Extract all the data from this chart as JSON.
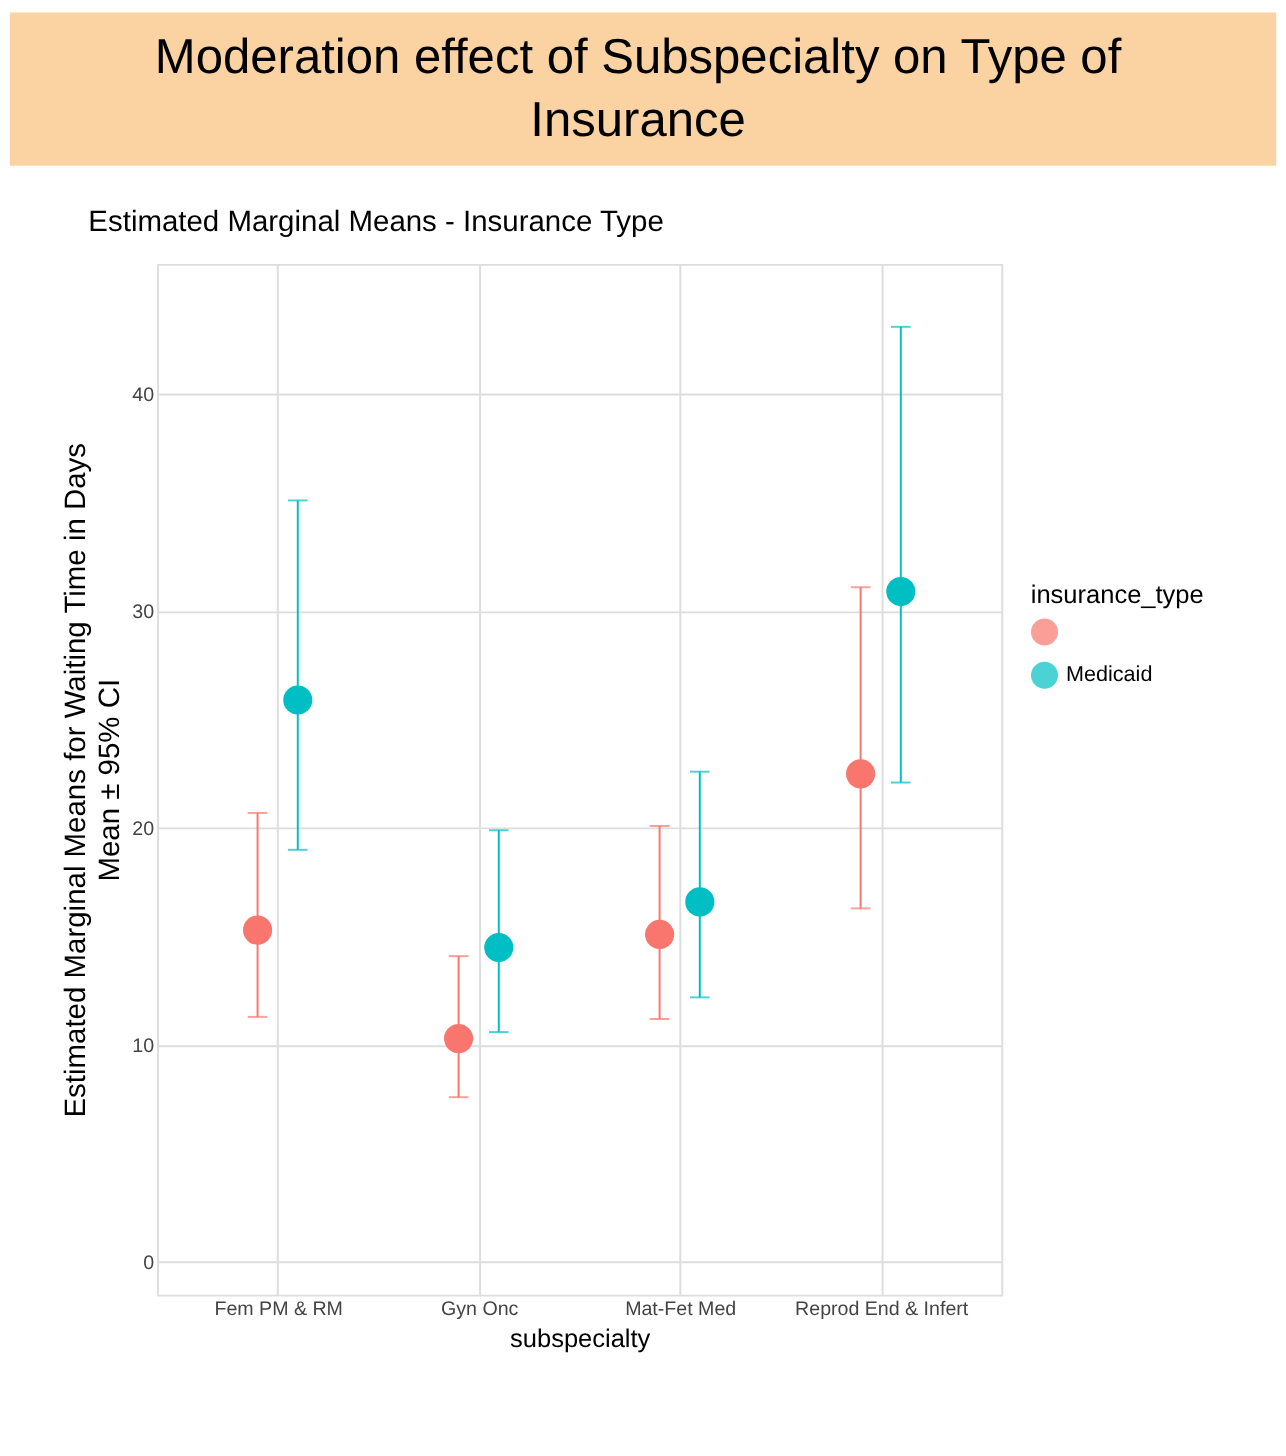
{
  "chart_data": {
    "type": "scatter",
    "title": "Moderation effect of Subspecialty on Type of Insurance",
    "subtitle": "Estimated Marginal Means - Insurance Type",
    "xlabel": "subspecialty",
    "ylabel": "Estimated Marginal Means for Waiting Time in Days\nMean ± 95% CI",
    "legend_title": "insurance_type",
    "categories": [
      "Fem PM & RM",
      "Gyn Onc",
      "Mat-Fet Med",
      "Reprod End & Infert"
    ],
    "series": [
      {
        "color": "#f8766d",
        "values": [
          15.3,
          10.3,
          15.1,
          22.5
        ],
        "errors": [
          [
            11.3,
            20.7
          ],
          [
            7.6,
            14.1
          ],
          [
            11.2,
            20.1
          ],
          [
            16.3,
            31.1
          ]
        ]
      },
      {
        "name": "Medicaid",
        "color": "#00bfc4",
        "values": [
          25.9,
          14.5,
          16.6,
          30.9
        ],
        "errors": [
          [
            19.0,
            35.1
          ],
          [
            10.6,
            19.9
          ],
          [
            12.2,
            22.6
          ],
          [
            22.1,
            43.1
          ]
        ]
      }
    ],
    "ylim": [
      -1.5,
      46
    ],
    "yticks": [
      0,
      10,
      20,
      30,
      40
    ],
    "grid": true,
    "legend": "right",
    "marker": "circle"
  }
}
